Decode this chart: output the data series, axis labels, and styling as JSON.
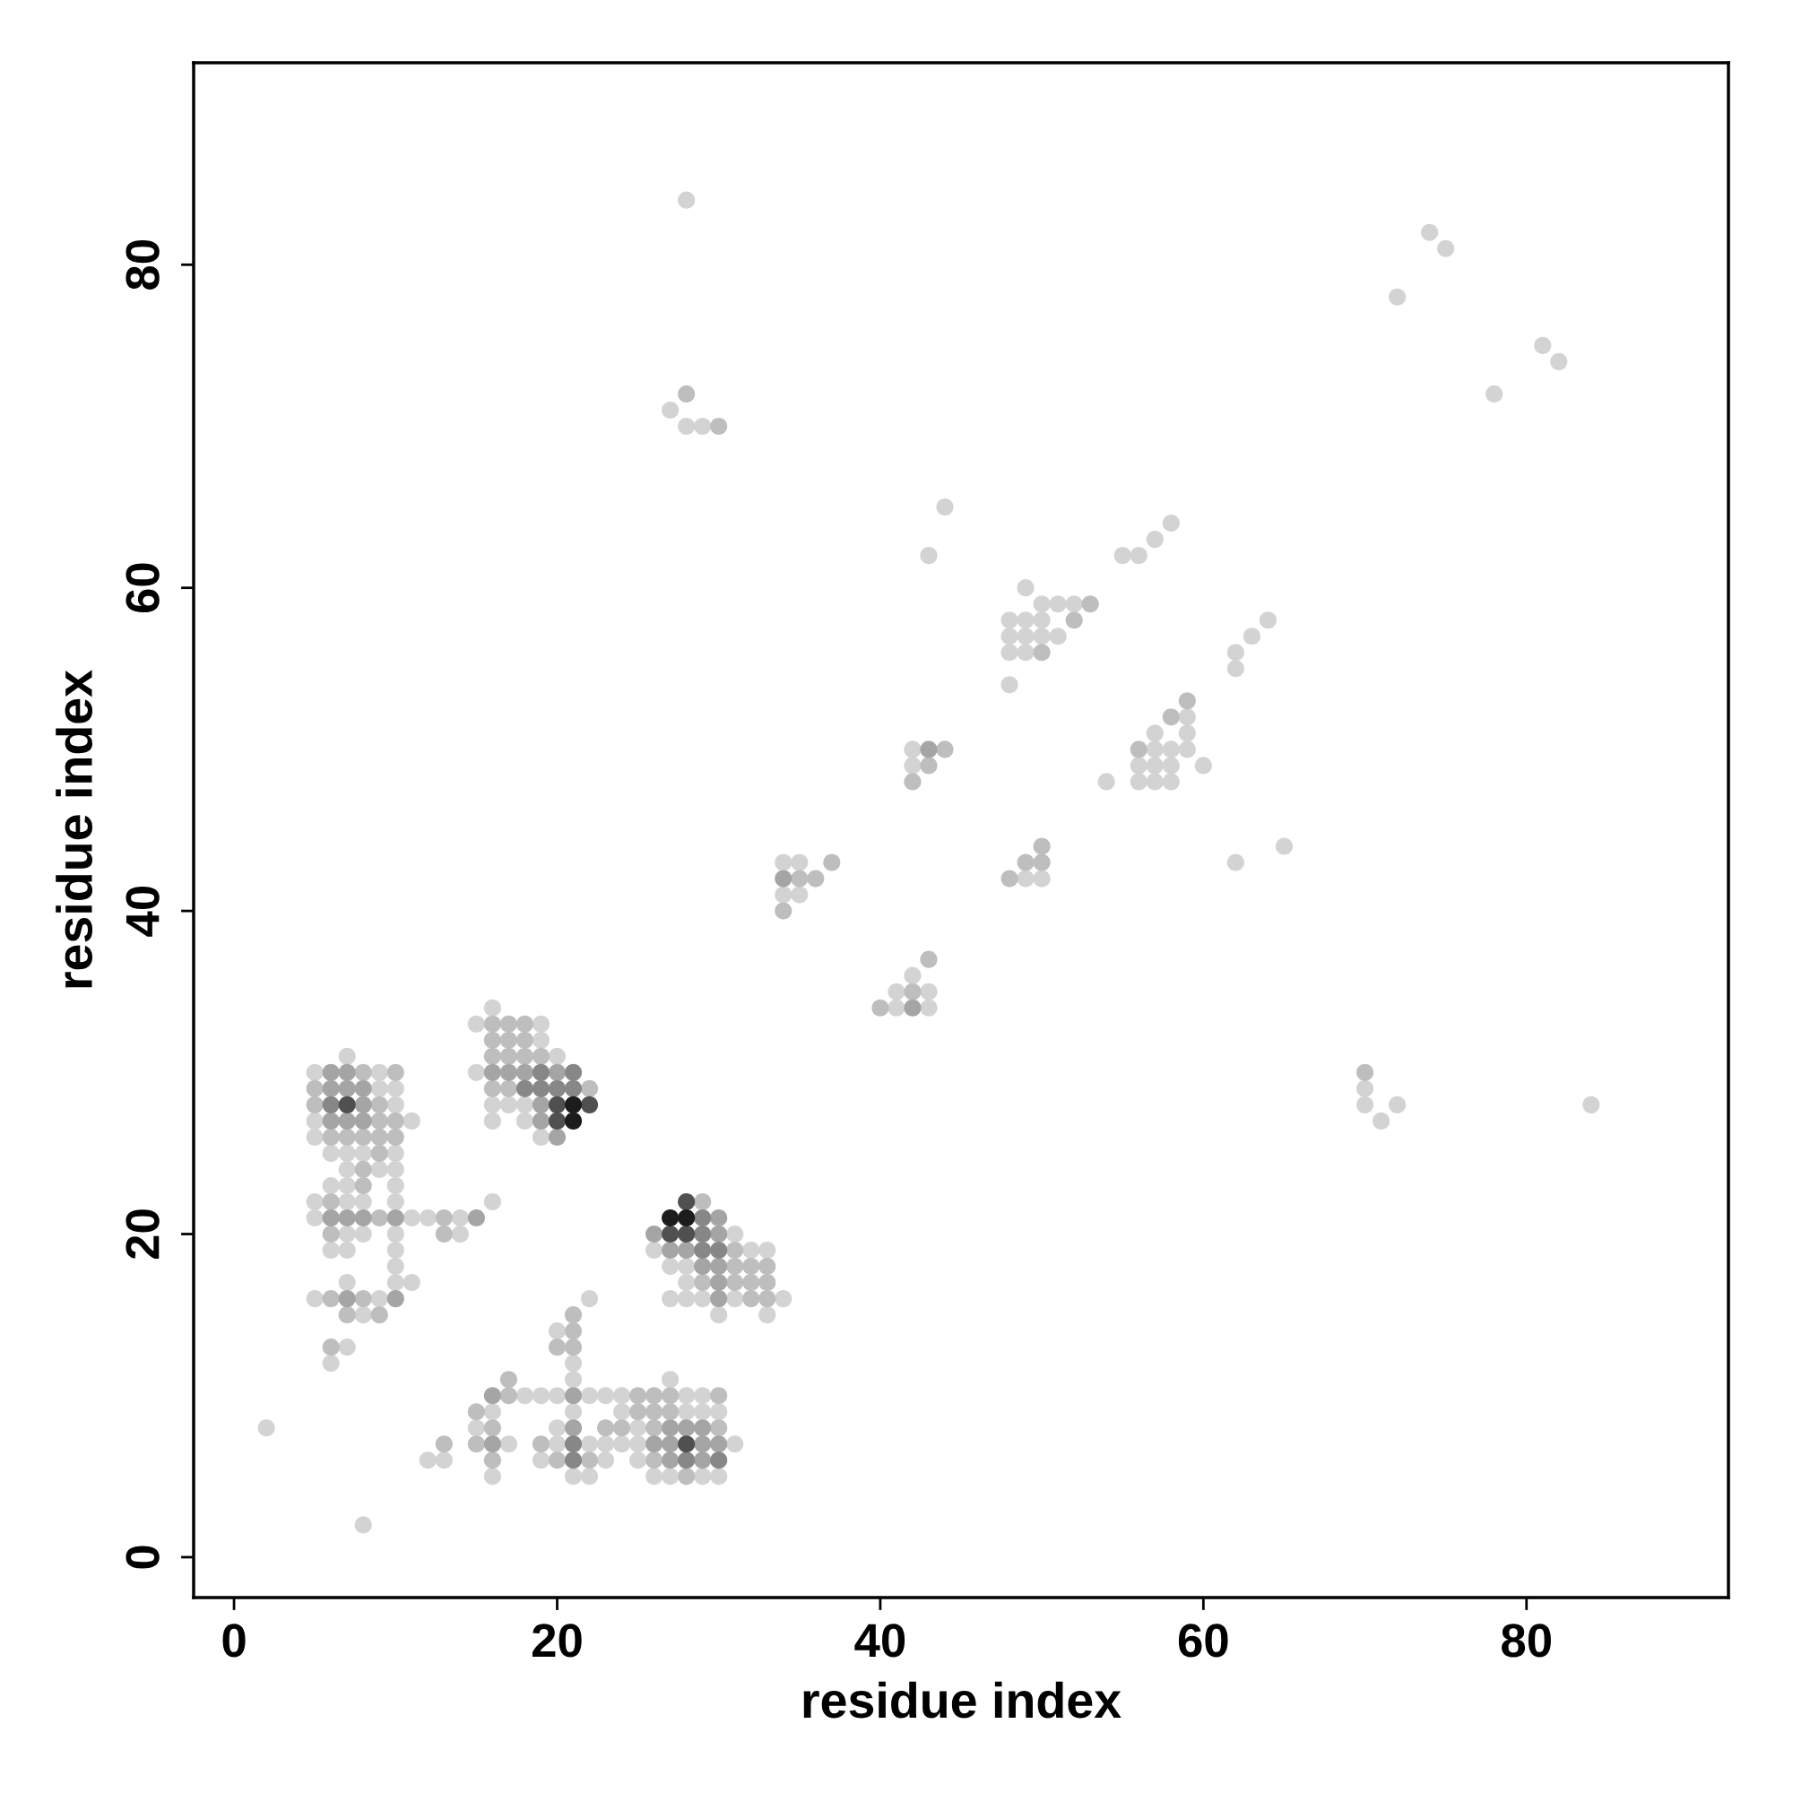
{
  "chart_data": {
    "type": "scatter",
    "xlabel": "residue index",
    "ylabel": "residue index",
    "xlim": [
      -2.5,
      92.5
    ],
    "ylim": [
      -2.5,
      92.5
    ],
    "xticks": [
      0,
      20,
      40,
      60,
      80
    ],
    "yticks": [
      0,
      20,
      40,
      60,
      80
    ],
    "marker": "circle",
    "series": [
      {
        "color": "#d3d3d3",
        "x": [
          7,
          5,
          9,
          9,
          10,
          10,
          5,
          11,
          5,
          6,
          7,
          8,
          10,
          7,
          9,
          10,
          6,
          7,
          10,
          5,
          7,
          8,
          10,
          5,
          11,
          12,
          14,
          7,
          8,
          10,
          14,
          6,
          7,
          10,
          10,
          7,
          10,
          11,
          5,
          9,
          8,
          7,
          6,
          16
        ],
        "values": [
          31,
          30,
          30,
          29,
          29,
          28,
          27,
          27,
          26,
          25,
          25,
          25,
          25,
          24,
          24,
          24,
          23,
          23,
          23,
          22,
          22,
          22,
          22,
          21,
          21,
          21,
          21,
          20,
          20,
          20,
          20,
          19,
          19,
          19,
          18,
          17,
          17,
          17,
          16,
          16,
          15,
          13,
          12,
          22
        ]
      },
      {
        "color": "#d3d3d3",
        "x": [
          16,
          15,
          19,
          19,
          20,
          15,
          16,
          17,
          18,
          16,
          18,
          19
        ],
        "values": [
          34,
          33,
          33,
          32,
          31,
          30,
          28,
          28,
          28,
          27,
          27,
          26
        ]
      },
      {
        "color": "#d3d3d3",
        "x": [
          31,
          26,
          32,
          33,
          27,
          28,
          28,
          27,
          28,
          29,
          31,
          34,
          30,
          33,
          22,
          20,
          21,
          21,
          27
        ],
        "values": [
          20,
          19,
          19,
          19,
          18,
          18,
          17,
          16,
          16,
          16,
          16,
          16,
          15,
          15,
          16,
          14,
          12,
          11,
          11
        ]
      },
      {
        "color": "#d3d3d3",
        "x": [
          18,
          19,
          20,
          22,
          23,
          24,
          28,
          29,
          16,
          21,
          24,
          28,
          29,
          30,
          15,
          20,
          25,
          17,
          20,
          22,
          23,
          24,
          25,
          31,
          12,
          13,
          19,
          23,
          25,
          16,
          21,
          22,
          26,
          27,
          29,
          30,
          2,
          8
        ],
        "values": [
          10,
          10,
          10,
          10,
          10,
          10,
          10,
          10,
          9,
          9,
          9,
          9,
          9,
          9,
          8,
          8,
          8,
          7,
          7,
          7,
          7,
          7,
          7,
          7,
          6,
          6,
          6,
          6,
          6,
          5,
          5,
          5,
          5,
          5,
          5,
          5,
          8,
          2
        ]
      },
      {
        "color": "#d3d3d3",
        "x": [
          49,
          50,
          51,
          52,
          48,
          49,
          50,
          64,
          48,
          49,
          50,
          51,
          63,
          48,
          49,
          62,
          62,
          48,
          59,
          57,
          59,
          42,
          57,
          58,
          59,
          42,
          56,
          57,
          58,
          60,
          54,
          56,
          57,
          58,
          65,
          62,
          49,
          50,
          42,
          41,
          43,
          41,
          43
        ],
        "values": [
          60,
          59,
          59,
          59,
          58,
          58,
          58,
          58,
          57,
          57,
          57,
          57,
          57,
          56,
          56,
          56,
          55,
          54,
          52,
          51,
          51,
          50,
          50,
          50,
          50,
          49,
          49,
          49,
          49,
          49,
          48,
          48,
          48,
          48,
          44,
          43,
          42,
          42,
          36,
          35,
          35,
          34,
          34
        ]
      },
      {
        "color": "#d3d3d3",
        "x": [
          43,
          55,
          56,
          57,
          58,
          44,
          34,
          35,
          34,
          35,
          70,
          70,
          71,
          72,
          84,
          28,
          27,
          28,
          29,
          74,
          75,
          72,
          81,
          82,
          78
        ],
        "values": [
          62,
          62,
          62,
          63,
          64,
          65,
          43,
          43,
          41,
          41,
          29,
          28,
          27,
          28,
          28,
          84,
          71,
          70,
          70,
          82,
          81,
          78,
          75,
          74,
          72
        ]
      },
      {
        "color": "#bebebe",
        "x": [
          8,
          10,
          5,
          5,
          9,
          9,
          10,
          6,
          7,
          8,
          9,
          10,
          9,
          8,
          8,
          6,
          9,
          13,
          6,
          13,
          6,
          8,
          7,
          9,
          6
        ],
        "values": [
          30,
          30,
          29,
          28,
          28,
          27,
          27,
          26,
          26,
          26,
          26,
          26,
          25,
          24,
          23,
          22,
          21,
          21,
          20,
          20,
          16,
          16,
          15,
          15,
          13
        ]
      },
      {
        "color": "#bebebe",
        "x": [
          16,
          17,
          18,
          16,
          17,
          18,
          16,
          17,
          18,
          19,
          16,
          17,
          22,
          29,
          31,
          31,
          32,
          33,
          29,
          31,
          32,
          33,
          32,
          33,
          21,
          21,
          20,
          21,
          17
        ],
        "values": [
          33,
          33,
          33,
          32,
          32,
          32,
          31,
          31,
          31,
          31,
          29,
          29,
          29,
          22,
          19,
          18,
          18,
          18,
          17,
          17,
          17,
          17,
          16,
          16,
          15,
          14,
          13,
          13,
          11
        ]
      },
      {
        "color": "#bebebe",
        "x": [
          17,
          25,
          26,
          27,
          30,
          15,
          25,
          26,
          27,
          16,
          23,
          24,
          26,
          30,
          13,
          15,
          19,
          16,
          20,
          22,
          26,
          28
        ],
        "values": [
          10,
          10,
          10,
          10,
          10,
          9,
          9,
          9,
          9,
          8,
          8,
          8,
          8,
          8,
          7,
          7,
          7,
          6,
          6,
          6,
          6,
          5
        ]
      },
      {
        "color": "#bebebe",
        "x": [
          53,
          52,
          50,
          59,
          58,
          44,
          56,
          43,
          42,
          50,
          49,
          50,
          48,
          43,
          42,
          40,
          35,
          36,
          37,
          34,
          70,
          28,
          30
        ],
        "values": [
          59,
          58,
          56,
          53,
          52,
          50,
          50,
          49,
          48,
          44,
          43,
          43,
          42,
          37,
          35,
          34,
          42,
          42,
          43,
          40,
          30,
          72,
          70
        ]
      },
      {
        "color": "#a5a5a5",
        "x": [
          6,
          7,
          6,
          7,
          8,
          8,
          6,
          7,
          8,
          6,
          7,
          8,
          10,
          15,
          7,
          10,
          16,
          17,
          18,
          20,
          19,
          19,
          20,
          30,
          26,
          30,
          27,
          28,
          29,
          30,
          30,
          30,
          16,
          21,
          21,
          27,
          28,
          29,
          16,
          26,
          27,
          29,
          30,
          27,
          29,
          43,
          42,
          34
        ],
        "values": [
          30,
          30,
          29,
          29,
          29,
          28,
          27,
          27,
          27,
          21,
          21,
          21,
          21,
          21,
          16,
          16,
          30,
          30,
          30,
          30,
          28,
          27,
          26,
          21,
          20,
          20,
          19,
          19,
          18,
          18,
          17,
          16,
          10,
          10,
          8,
          8,
          8,
          8,
          7,
          7,
          7,
          7,
          7,
          6,
          6,
          50,
          34,
          42
        ]
      },
      {
        "color": "#878787",
        "x": [
          6,
          19,
          21,
          18,
          19,
          20,
          21,
          29,
          29,
          29,
          30,
          21,
          21,
          28,
          30
        ],
        "values": [
          28,
          30,
          30,
          29,
          29,
          29,
          29,
          21,
          20,
          19,
          19,
          7,
          6,
          6,
          6
        ]
      },
      {
        "color": "#505050",
        "x": [
          7,
          20,
          22,
          20,
          28,
          27,
          28,
          28
        ],
        "values": [
          28,
          28,
          28,
          27,
          22,
          20,
          20,
          7
        ]
      },
      {
        "color": "#1c1c1c",
        "x": [
          21,
          21,
          27,
          28
        ],
        "values": [
          28,
          27,
          21,
          21
        ]
      }
    ]
  }
}
